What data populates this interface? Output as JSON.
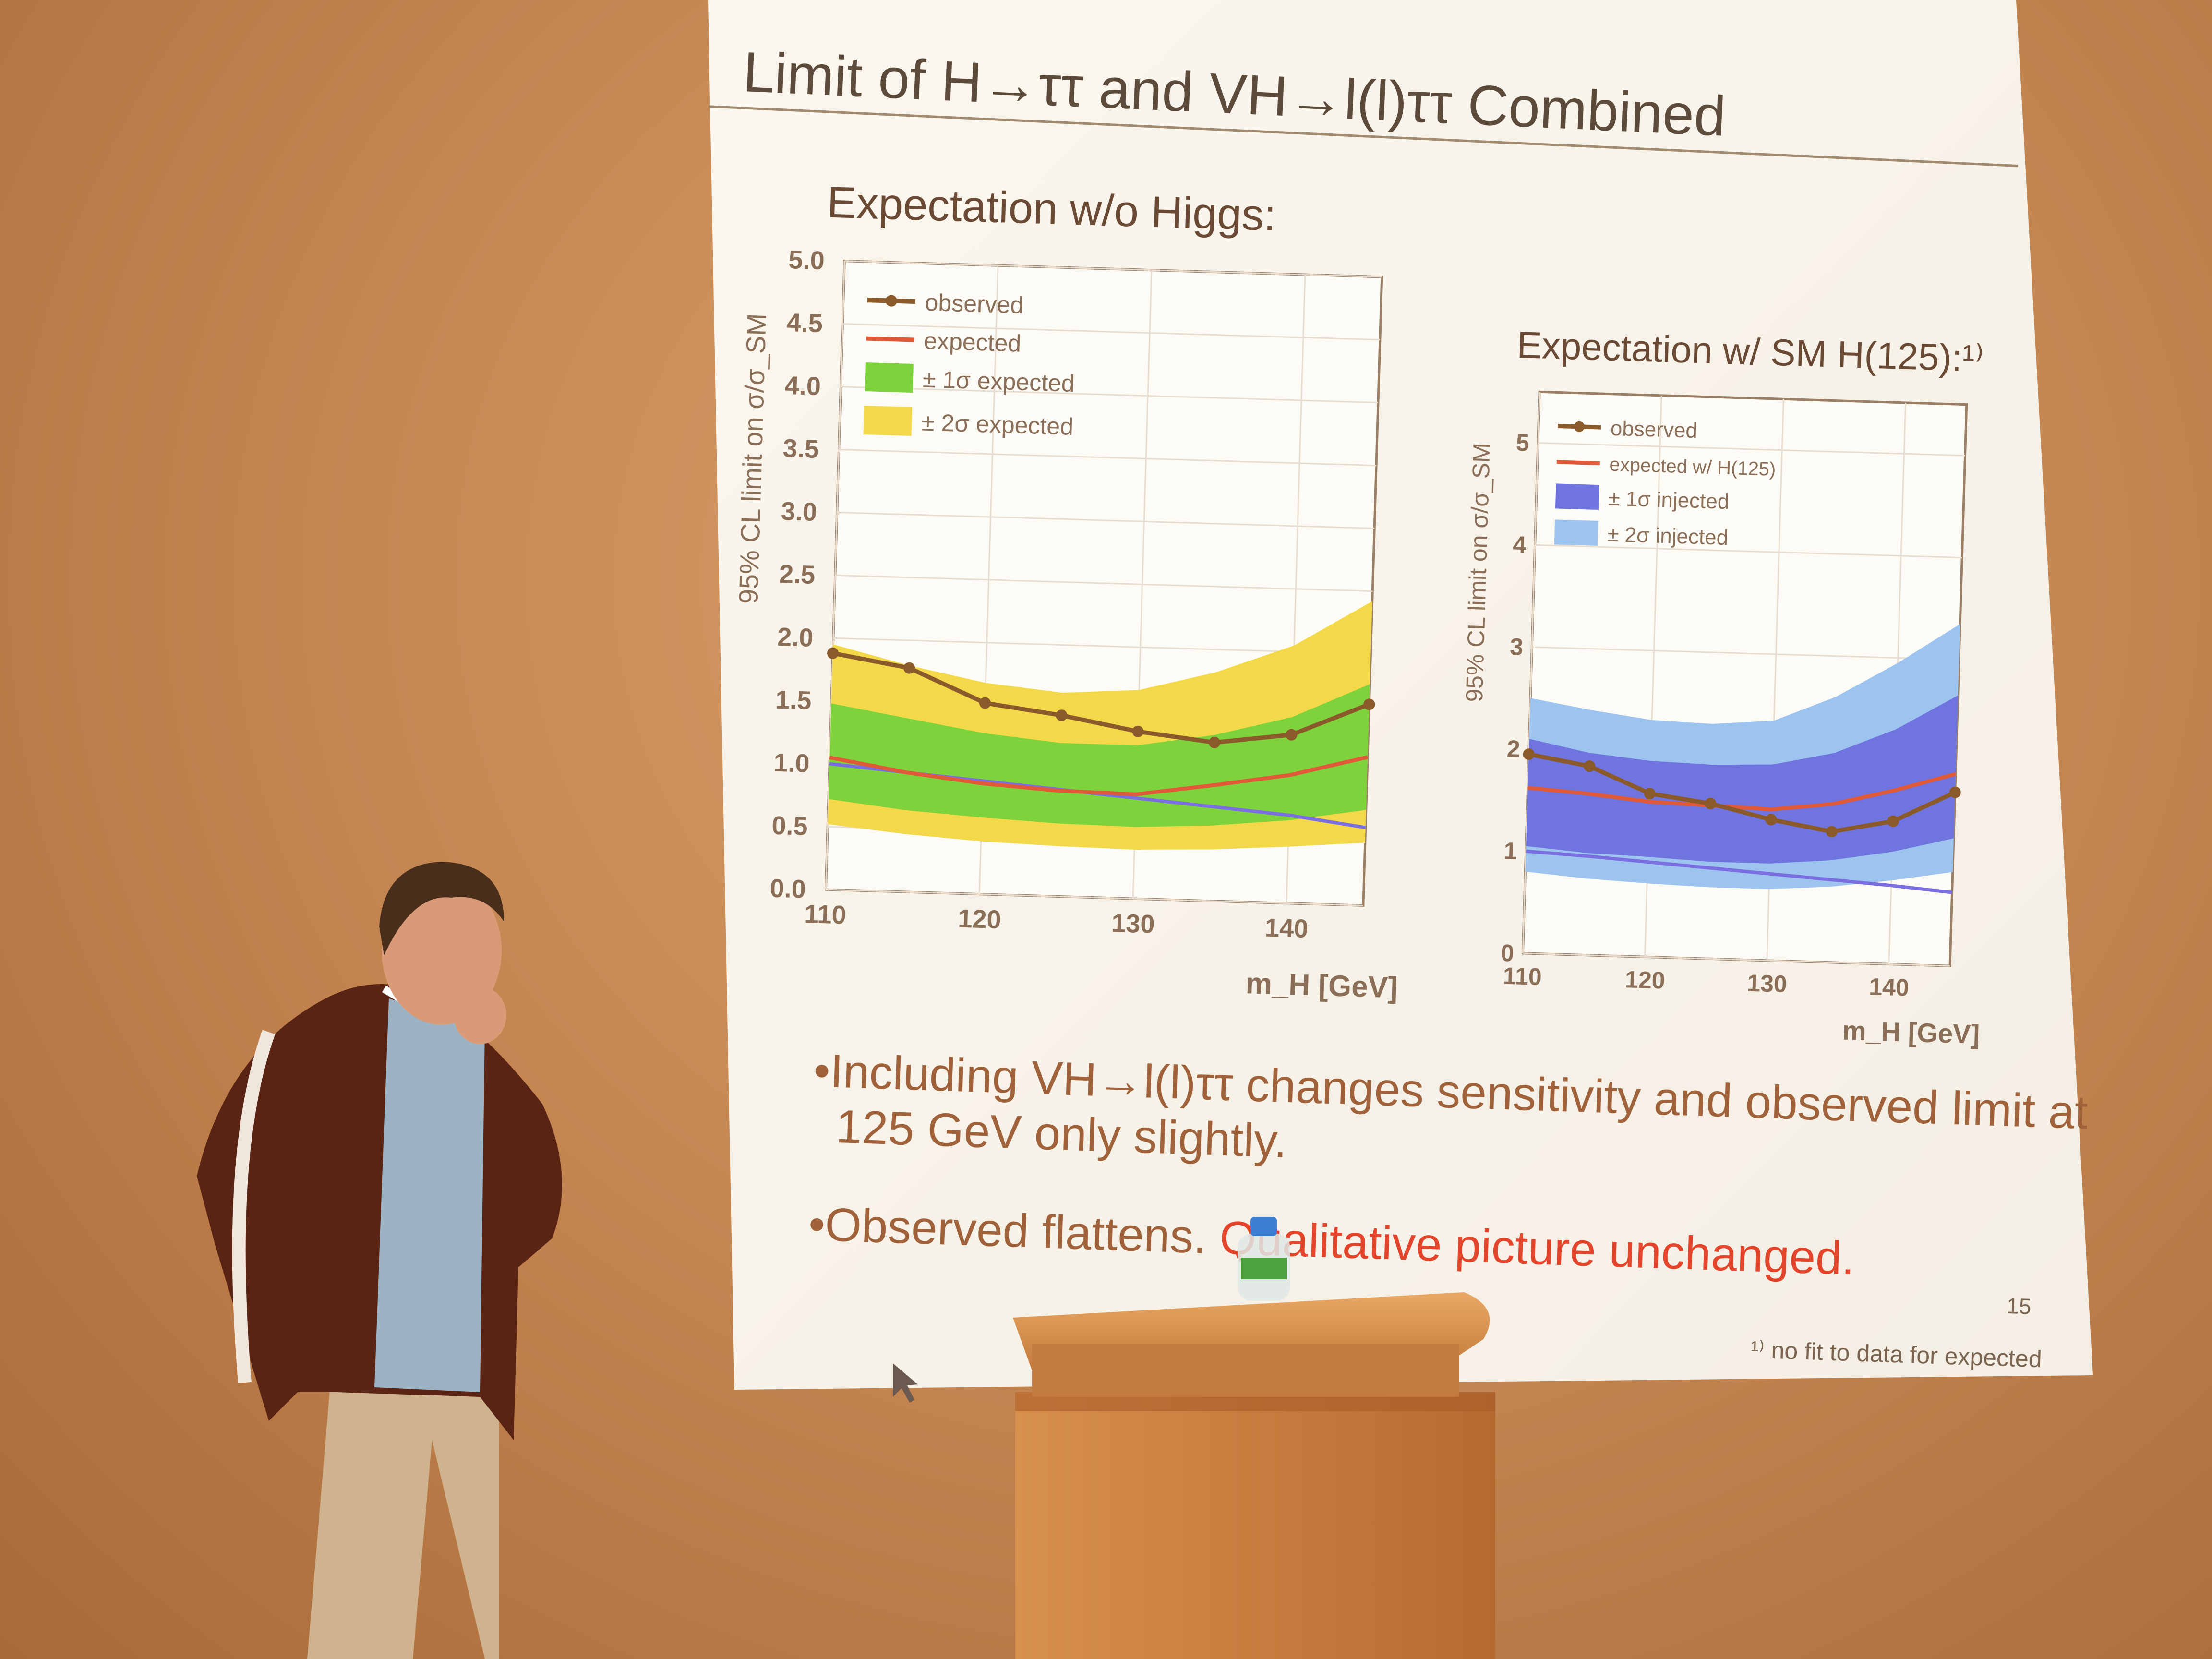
{
  "slide": {
    "title": "Limit of H→ττ and VH→l(l)ττ Combined",
    "page_number": "15",
    "footnote": "¹⁾ no fit to data for expected",
    "bullets": [
      {
        "line1": "•Including VH→l(l)ττ changes sensitivity and observed limit at",
        "line2": "125 GeV only slightly."
      },
      {
        "part1": "•Observed flattens. ",
        "part2": "Qualitative picture unchanged."
      }
    ],
    "colors": {
      "accent": "#e2452c",
      "text": "#a0623a",
      "observed": "#8b5a2b",
      "expected": "#e05a3a"
    }
  },
  "chart_data": [
    {
      "type": "line",
      "title": "Expectation w/o Higgs:",
      "xlabel": "m_H [GeV]",
      "ylabel": "95% CL limit on σ/σ_SM",
      "xlim": [
        110,
        145
      ],
      "ylim": [
        0,
        5
      ],
      "xticks": [
        "110",
        "120",
        "130",
        "140"
      ],
      "yticks": [
        "0.0",
        "0.5",
        "1.0",
        "1.5",
        "2.0",
        "2.5",
        "3.0",
        "3.5",
        "4.0",
        "4.5",
        "5.0"
      ],
      "legend": [
        "observed",
        "expected",
        "± 1σ expected",
        "± 2σ expected"
      ],
      "legend_placement": "top-left",
      "grid": true,
      "x": [
        110,
        115,
        120,
        125,
        130,
        135,
        140,
        145
      ],
      "observed": [
        1.88,
        1.78,
        1.52,
        1.44,
        1.33,
        1.26,
        1.34,
        1.6
      ],
      "expected": [
        1.05,
        0.95,
        0.88,
        0.84,
        0.83,
        0.92,
        1.02,
        1.18
      ],
      "band1_low": [
        0.72,
        0.65,
        0.61,
        0.58,
        0.57,
        0.6,
        0.66,
        0.76
      ],
      "band1_high": [
        1.48,
        1.38,
        1.28,
        1.22,
        1.22,
        1.32,
        1.48,
        1.76
      ],
      "band2_low": [
        0.52,
        0.46,
        0.42,
        0.4,
        0.39,
        0.41,
        0.45,
        0.5
      ],
      "band2_high": [
        1.95,
        1.8,
        1.68,
        1.62,
        1.66,
        1.82,
        2.05,
        2.42
      ],
      "sm_line": [
        1.0,
        0.95,
        0.9,
        0.85,
        0.8,
        0.75,
        0.7,
        0.62
      ]
    },
    {
      "type": "line",
      "title": "Expectation w/ SM H(125):¹⁾",
      "xlabel": "m_H [GeV]",
      "ylabel": "95% CL limit on σ/σ_SM",
      "xlim": [
        110,
        145
      ],
      "ylim": [
        0,
        5.5
      ],
      "xticks": [
        "110",
        "120",
        "130",
        "140"
      ],
      "yticks": [
        "0",
        "1",
        "2",
        "3",
        "4",
        "5"
      ],
      "legend": [
        "observed",
        "expected w/ H(125)",
        "± 1σ injected",
        "± 2σ injected"
      ],
      "legend_placement": "top-left",
      "grid": true,
      "x": [
        110,
        115,
        120,
        125,
        130,
        135,
        140,
        145
      ],
      "observed": [
        1.95,
        1.85,
        1.6,
        1.52,
        1.38,
        1.28,
        1.4,
        1.7
      ],
      "expected": [
        1.62,
        1.58,
        1.52,
        1.5,
        1.48,
        1.55,
        1.7,
        1.88
      ],
      "band1_low": [
        1.05,
        1.0,
        0.98,
        0.95,
        0.95,
        1.0,
        1.1,
        1.25
      ],
      "band1_high": [
        2.1,
        1.98,
        1.92,
        1.9,
        1.92,
        2.05,
        2.3,
        2.65
      ],
      "band2_low": [
        0.8,
        0.75,
        0.72,
        0.7,
        0.7,
        0.74,
        0.82,
        0.92
      ],
      "band2_high": [
        2.5,
        2.4,
        2.32,
        2.3,
        2.35,
        2.6,
        2.95,
        3.35
      ],
      "sm_line": [
        1.0,
        0.97,
        0.93,
        0.89,
        0.85,
        0.81,
        0.77,
        0.72
      ]
    }
  ],
  "scene": {
    "bottle_label": "water-bottle"
  }
}
